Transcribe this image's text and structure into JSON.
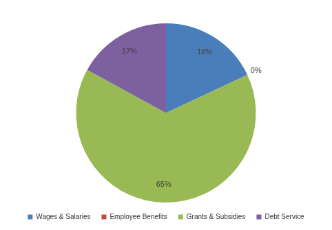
{
  "chart_data": {
    "type": "pie",
    "categories": [
      "Wages & Salaries",
      "Employee Benefits",
      "Grants & Subsidies",
      "Debt Service"
    ],
    "values": [
      18,
      0,
      65,
      17
    ],
    "value_labels": [
      "18%",
      "0%",
      "65%",
      "17%"
    ],
    "colors": [
      "#4a7ebb",
      "#be4b48",
      "#98b954",
      "#7d60a0"
    ],
    "data_labels": true,
    "legend": "bottom"
  }
}
